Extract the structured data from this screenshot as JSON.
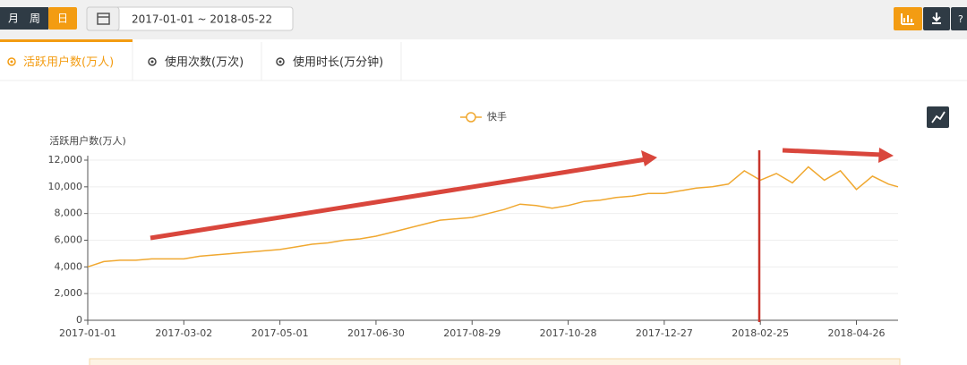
{
  "toolbar": {
    "periods": [
      "月",
      "周",
      "日"
    ],
    "date_range": "2017-01-01 ~ 2018-05-22",
    "help": "?"
  },
  "tabs": [
    "活跃用户数(万人)",
    "使用次数(万次)",
    "使用时长(万分钟)"
  ],
  "chart_data": {
    "type": "line",
    "ylabel": "活跃用户数(万人)",
    "x": [
      "2017-01-01",
      "2017-01-11",
      "2017-01-21",
      "2017-01-31",
      "2017-02-10",
      "2017-02-20",
      "2017-03-02",
      "2017-03-12",
      "2017-03-22",
      "2017-04-01",
      "2017-04-11",
      "2017-04-21",
      "2017-05-01",
      "2017-05-11",
      "2017-05-21",
      "2017-05-31",
      "2017-06-10",
      "2017-06-20",
      "2017-06-30",
      "2017-07-10",
      "2017-07-20",
      "2017-07-30",
      "2017-08-09",
      "2017-08-19",
      "2017-08-29",
      "2017-09-08",
      "2017-09-18",
      "2017-09-28",
      "2017-10-08",
      "2017-10-18",
      "2017-10-28",
      "2017-11-07",
      "2017-11-17",
      "2017-11-27",
      "2017-12-07",
      "2017-12-17",
      "2017-12-27",
      "2018-01-06",
      "2018-01-16",
      "2018-01-26",
      "2018-02-05",
      "2018-02-15",
      "2018-02-25",
      "2018-03-07",
      "2018-03-17",
      "2018-03-27",
      "2018-04-06",
      "2018-04-16",
      "2018-04-26",
      "2018-05-06",
      "2018-05-16",
      "2018-05-22"
    ],
    "series": [
      {
        "name": "快手",
        "color": "#f0a830",
        "values": [
          4000,
          4400,
          4500,
          4500,
          4600,
          4600,
          4600,
          4800,
          4900,
          5000,
          5100,
          5200,
          5300,
          5500,
          5700,
          5800,
          6000,
          6100,
          6300,
          6600,
          6900,
          7200,
          7500,
          7600,
          7700,
          8000,
          8300,
          8700,
          8600,
          8400,
          8600,
          8900,
          9000,
          9200,
          9300,
          9500,
          9500,
          9700,
          9900,
          10000,
          10200,
          11200,
          10500,
          11000,
          10300,
          11500,
          10500,
          11200,
          9800,
          10800,
          10200,
          10000
        ]
      }
    ],
    "xlim": [
      "2017-01-01",
      "2018-05-22"
    ],
    "xticks": [
      "2017-01-01",
      "2017-03-02",
      "2017-05-01",
      "2017-06-30",
      "2017-08-29",
      "2017-10-28",
      "2017-12-27",
      "2018-02-25",
      "2018-04-26"
    ],
    "ylim": [
      0,
      12000
    ],
    "yticks": [
      0,
      {
        "value": 2000,
        "label": "2,000"
      },
      {
        "value": 4000,
        "label": "4,000"
      },
      {
        "value": 6000,
        "label": "6,000"
      },
      {
        "value": 8000,
        "label": "8,000"
      },
      {
        "value": 10000,
        "label": "10,000"
      },
      {
        "value": 12000,
        "label": "12,000"
      }
    ],
    "grid": true,
    "legend": "top"
  }
}
